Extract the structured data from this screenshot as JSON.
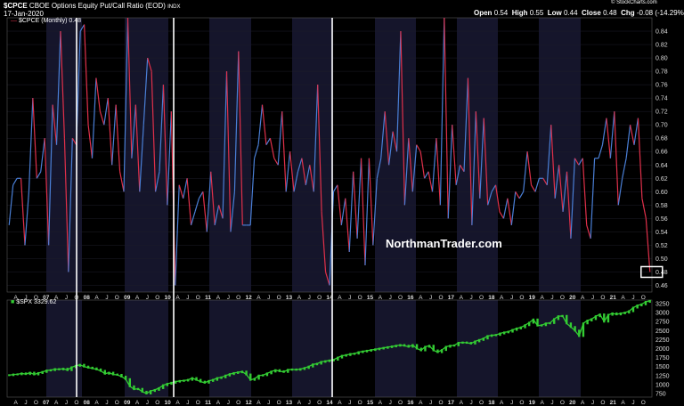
{
  "header": {
    "symbol": "$CPCE",
    "name": "CBOE Options Equity Put/Call Ratio (EOD)",
    "exchange": "INDX",
    "date": "17-Jan-2020",
    "watermark": "© StockCharts.com",
    "quote": {
      "open_label": "Open",
      "open": "0.54",
      "high_label": "High",
      "high": "0.55",
      "low_label": "Low",
      "low": "0.44",
      "close_label": "Close",
      "close": "0.48",
      "chg_label": "Chg",
      "chg": "-0.08 (-14.29%)"
    }
  },
  "legend_top": "$CPCE (Monthly) 0.48",
  "legend_bottom": "$SPX 3329.62",
  "watermark_text": "NorthmanTrader.com",
  "colors": {
    "up": "#4a7fd6",
    "down": "#e0304a",
    "spx": "#33cc33",
    "vline": "#ffffff",
    "band": "#15152b",
    "box": "#ffffff",
    "grid": "#1e1e2a"
  },
  "chart_data": [
    {
      "type": "line",
      "series": [
        {
          "name": "$CPCE (Monthly)",
          "values": [
            0.55,
            0.61,
            0.62,
            0.62,
            0.52,
            0.6,
            0.74,
            0.62,
            0.63,
            0.68,
            0.52,
            0.73,
            0.67,
            0.84,
            0.68,
            0.48,
            0.68,
            0.67,
            0.84,
            0.85,
            0.7,
            0.65,
            0.77,
            0.72,
            0.7,
            0.74,
            0.64,
            0.73,
            0.63,
            0.6,
            0.86,
            0.65,
            0.73,
            0.6,
            0.7,
            0.8,
            0.78,
            0.6,
            0.63,
            0.76,
            0.58,
            0.72,
            0.46,
            0.61,
            0.59,
            0.62,
            0.55,
            0.57,
            0.59,
            0.6,
            0.54,
            0.63,
            0.55,
            0.58,
            0.56,
            0.78,
            0.54,
            0.6,
            0.81,
            0.55,
            0.55,
            0.55,
            0.65,
            0.67,
            0.73,
            0.67,
            0.68,
            0.65,
            0.64,
            0.72,
            0.6,
            0.66,
            0.6,
            0.63,
            0.65,
            0.61,
            0.64,
            0.6,
            0.76,
            0.57,
            0.48,
            0.46,
            0.6,
            0.61,
            0.55,
            0.59,
            0.51,
            0.63,
            0.53,
            0.65,
            0.49,
            0.65,
            0.52,
            0.62,
            0.65,
            0.72,
            0.64,
            0.69,
            0.66,
            0.84,
            0.58,
            0.68,
            0.6,
            0.67,
            0.66,
            0.62,
            0.63,
            0.6,
            0.68,
            0.58,
            0.86,
            0.56,
            0.7,
            0.61,
            0.64,
            0.63,
            0.77,
            0.55,
            0.72,
            0.59,
            0.71,
            0.58,
            0.6,
            0.61,
            0.57,
            0.56,
            0.59,
            0.55,
            0.6,
            0.59,
            0.6,
            0.66,
            0.61,
            0.6,
            0.62,
            0.62,
            0.61,
            0.7,
            0.59,
            0.64,
            0.57,
            0.63,
            0.53,
            0.65,
            0.64,
            0.65,
            0.55,
            0.53,
            0.65,
            0.65,
            0.67,
            0.71,
            0.65,
            0.72,
            0.58,
            0.62,
            0.65,
            0.7,
            0.67,
            0.71,
            0.59,
            0.56,
            0.48
          ]
        }
      ],
      "ylim": [
        0.45,
        0.86
      ],
      "yticks": [
        "0.84",
        "0.82",
        "0.80",
        "0.78",
        "0.76",
        "0.74",
        "0.72",
        "0.70",
        "0.68",
        "0.66",
        "0.64",
        "0.62",
        "0.60",
        "0.58",
        "0.56",
        "0.54",
        "0.52",
        "0.50",
        "0.48",
        "0.46"
      ],
      "ytick_values": [
        0.84,
        0.82,
        0.8,
        0.78,
        0.76,
        0.74,
        0.72,
        0.7,
        0.68,
        0.66,
        0.64,
        0.62,
        0.6,
        0.58,
        0.56,
        0.54,
        0.52,
        0.5,
        0.48,
        0.46
      ]
    },
    {
      "type": "line",
      "series": [
        {
          "name": "$SPX",
          "values": [
            1260,
            1280,
            1285,
            1310,
            1290,
            1330,
            1280,
            1320,
            1350,
            1390,
            1400,
            1430,
            1420,
            1440,
            1400,
            1480,
            1520,
            1550,
            1500,
            1470,
            1450,
            1420,
            1380,
            1300,
            1330,
            1280,
            1270,
            1220,
            1150,
            950,
            870,
            880,
            800,
            750,
            820,
            850,
            900,
            980,
            1020,
            1050,
            1080,
            1100,
            1110,
            1130,
            1180,
            1130,
            1080,
            1050,
            1100,
            1130,
            1180,
            1200,
            1250,
            1290,
            1320,
            1340,
            1360,
            1280,
            1130,
            1160,
            1250,
            1260,
            1310,
            1360,
            1400,
            1370,
            1350,
            1410,
            1420,
            1410,
            1430,
            1460,
            1500,
            1560,
            1580,
            1630,
            1650,
            1670,
            1690,
            1750,
            1800,
            1820,
            1850,
            1860,
            1900,
            1920,
            1940,
            1960,
            1980,
            2000,
            2020,
            2040,
            2060,
            2080,
            2100,
            2080,
            2050,
            2100,
            2000,
            1950,
            2050,
            2080,
            1950,
            1900,
            1960,
            2050,
            2080,
            2090,
            2160,
            2170,
            2160,
            2140,
            2200,
            2240,
            2280,
            2350,
            2370,
            2380,
            2420,
            2450,
            2470,
            2520,
            2560,
            2590,
            2650,
            2720,
            2810,
            2640,
            2650,
            2700,
            2710,
            2820,
            2900,
            2910,
            2700,
            2600,
            2500,
            2350,
            2700,
            2780,
            2820,
            2900,
            2950,
            2750,
            2940,
            2980,
            2950,
            2980,
            3000,
            3040,
            3140,
            3200,
            3230,
            3300,
            3329.62
          ]
        }
      ],
      "ylim": [
        650,
        3350
      ],
      "yticks": [
        "3250",
        "3000",
        "2750",
        "2500",
        "2250",
        "2000",
        "1750",
        "1500",
        "1250",
        "1000",
        "750"
      ],
      "ytick_values": [
        3250,
        3000,
        2750,
        2500,
        2250,
        2000,
        1750,
        1500,
        1250,
        1000,
        750
      ],
      "x_tick_labels": [
        "A",
        "J",
        "O",
        "07",
        "A",
        "J",
        "O",
        "08",
        "A",
        "J",
        "O",
        "09",
        "A",
        "J",
        "O",
        "10",
        "A",
        "J",
        "O",
        "11",
        "A",
        "J",
        "O",
        "12",
        "A",
        "J",
        "O",
        "13",
        "A",
        "J",
        "O",
        "14",
        "A",
        "J",
        "O",
        "15",
        "A",
        "J",
        "O",
        "16",
        "A",
        "J",
        "O",
        "17",
        "A",
        "J",
        "O",
        "18",
        "A",
        "J",
        "O",
        "19",
        "A",
        "J",
        "O",
        "20",
        "A",
        "J",
        "O",
        "21",
        "A",
        "J",
        "O"
      ],
      "x_year_labels": [
        "07",
        "08",
        "09",
        "10",
        "11",
        "12",
        "13",
        "14",
        "15",
        "16",
        "17",
        "18",
        "19",
        "20",
        "21"
      ]
    }
  ]
}
